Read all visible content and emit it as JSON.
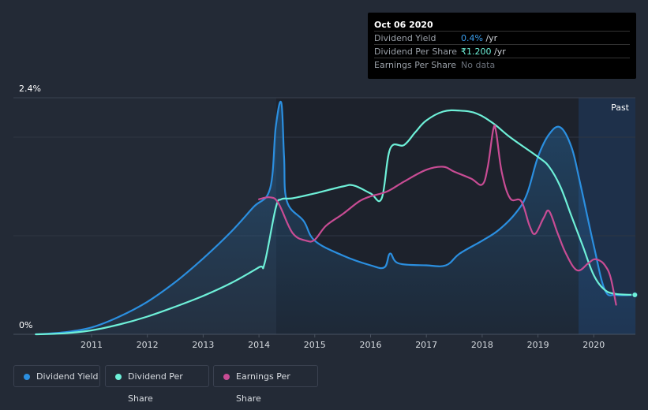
{
  "tooltip": {
    "date": "Oct 06 2020",
    "rows": [
      {
        "label": "Dividend Yield",
        "value": "0.4%",
        "unit": " /yr",
        "color": "#3ba0f0"
      },
      {
        "label": "Dividend Per Share",
        "value": "₹1.200",
        "unit": " /yr",
        "color": "#6ef0d8"
      },
      {
        "label": "Earnings Per Share",
        "value": "No data",
        "unit": "",
        "color": "#6a707a"
      }
    ]
  },
  "past_label": "Past",
  "legend": [
    {
      "label": "Dividend Yield",
      "color": "#2b8fe0"
    },
    {
      "label": "Dividend Per Share",
      "color": "#6ef0d8"
    },
    {
      "label": "Earnings Per Share",
      "color": "#c84c94"
    }
  ],
  "chart_data": {
    "type": "line",
    "x_ticks": [
      "2011",
      "2012",
      "2013",
      "2014",
      "2015",
      "2016",
      "2017",
      "2018",
      "2019",
      "2020"
    ],
    "y_ticks": [
      "0%",
      "2.4%"
    ],
    "ylim": [
      0,
      2.4
    ],
    "xlim": [
      2009.5,
      2020.75
    ],
    "forecast_start": 2019.75,
    "series": [
      {
        "name": "Dividend Yield",
        "color": "#2b8fe0",
        "points": [
          [
            2010.0,
            0.0
          ],
          [
            2010.5,
            0.02
          ],
          [
            2011.0,
            0.07
          ],
          [
            2011.5,
            0.18
          ],
          [
            2012.0,
            0.33
          ],
          [
            2012.5,
            0.53
          ],
          [
            2013.0,
            0.77
          ],
          [
            2013.5,
            1.04
          ],
          [
            2013.9,
            1.29
          ],
          [
            2014.2,
            1.48
          ],
          [
            2014.3,
            2.1
          ],
          [
            2014.4,
            2.35
          ],
          [
            2014.45,
            1.8
          ],
          [
            2014.5,
            1.35
          ],
          [
            2014.8,
            1.15
          ],
          [
            2015.0,
            0.95
          ],
          [
            2015.5,
            0.8
          ],
          [
            2016.0,
            0.7
          ],
          [
            2016.25,
            0.68
          ],
          [
            2016.35,
            0.82
          ],
          [
            2016.5,
            0.72
          ],
          [
            2017.0,
            0.7
          ],
          [
            2017.35,
            0.7
          ],
          [
            2017.6,
            0.82
          ],
          [
            2018.0,
            0.95
          ],
          [
            2018.3,
            1.06
          ],
          [
            2018.6,
            1.23
          ],
          [
            2018.8,
            1.42
          ],
          [
            2019.0,
            1.8
          ],
          [
            2019.2,
            2.03
          ],
          [
            2019.4,
            2.1
          ],
          [
            2019.6,
            1.9
          ],
          [
            2019.75,
            1.55
          ],
          [
            2020.0,
            0.9
          ],
          [
            2020.2,
            0.45
          ],
          [
            2020.4,
            0.4
          ],
          [
            2020.75,
            0.4
          ]
        ]
      },
      {
        "name": "Dividend Per Share",
        "color": "#6ef0d8",
        "points": [
          [
            2010.0,
            0.0
          ],
          [
            2010.5,
            0.01
          ],
          [
            2011.0,
            0.04
          ],
          [
            2011.5,
            0.1
          ],
          [
            2012.0,
            0.18
          ],
          [
            2012.5,
            0.28
          ],
          [
            2013.0,
            0.39
          ],
          [
            2013.5,
            0.52
          ],
          [
            2014.0,
            0.68
          ],
          [
            2014.1,
            0.72
          ],
          [
            2014.3,
            1.28
          ],
          [
            2014.4,
            1.37
          ],
          [
            2014.6,
            1.38
          ],
          [
            2015.0,
            1.43
          ],
          [
            2015.5,
            1.5
          ],
          [
            2015.7,
            1.51
          ],
          [
            2016.0,
            1.43
          ],
          [
            2016.2,
            1.38
          ],
          [
            2016.35,
            1.88
          ],
          [
            2016.6,
            1.92
          ],
          [
            2016.8,
            2.05
          ],
          [
            2017.0,
            2.17
          ],
          [
            2017.3,
            2.26
          ],
          [
            2017.6,
            2.27
          ],
          [
            2017.9,
            2.24
          ],
          [
            2018.2,
            2.14
          ],
          [
            2018.5,
            2.0
          ],
          [
            2019.0,
            1.8
          ],
          [
            2019.2,
            1.7
          ],
          [
            2019.4,
            1.5
          ],
          [
            2019.6,
            1.2
          ],
          [
            2019.8,
            0.9
          ],
          [
            2020.0,
            0.6
          ],
          [
            2020.2,
            0.45
          ],
          [
            2020.4,
            0.41
          ],
          [
            2020.75,
            0.4
          ]
        ]
      },
      {
        "name": "Earnings Per Share",
        "color": "#c84c94",
        "points": [
          [
            2014.0,
            1.37
          ],
          [
            2014.2,
            1.39
          ],
          [
            2014.35,
            1.33
          ],
          [
            2014.6,
            1.03
          ],
          [
            2014.85,
            0.95
          ],
          [
            2015.0,
            0.96
          ],
          [
            2015.2,
            1.1
          ],
          [
            2015.5,
            1.22
          ],
          [
            2015.8,
            1.35
          ],
          [
            2016.0,
            1.4
          ],
          [
            2016.3,
            1.45
          ],
          [
            2016.6,
            1.55
          ],
          [
            2017.0,
            1.67
          ],
          [
            2017.3,
            1.7
          ],
          [
            2017.5,
            1.65
          ],
          [
            2017.8,
            1.58
          ],
          [
            2018.0,
            1.52
          ],
          [
            2018.1,
            1.7
          ],
          [
            2018.2,
            2.08
          ],
          [
            2018.25,
            2.05
          ],
          [
            2018.35,
            1.65
          ],
          [
            2018.5,
            1.38
          ],
          [
            2018.7,
            1.35
          ],
          [
            2018.85,
            1.1
          ],
          [
            2018.95,
            1.02
          ],
          [
            2019.1,
            1.18
          ],
          [
            2019.2,
            1.25
          ],
          [
            2019.35,
            1.03
          ],
          [
            2019.5,
            0.82
          ],
          [
            2019.7,
            0.65
          ],
          [
            2019.9,
            0.72
          ],
          [
            2020.0,
            0.76
          ],
          [
            2020.1,
            0.75
          ],
          [
            2020.2,
            0.7
          ],
          [
            2020.3,
            0.58
          ],
          [
            2020.4,
            0.3
          ]
        ]
      }
    ]
  }
}
